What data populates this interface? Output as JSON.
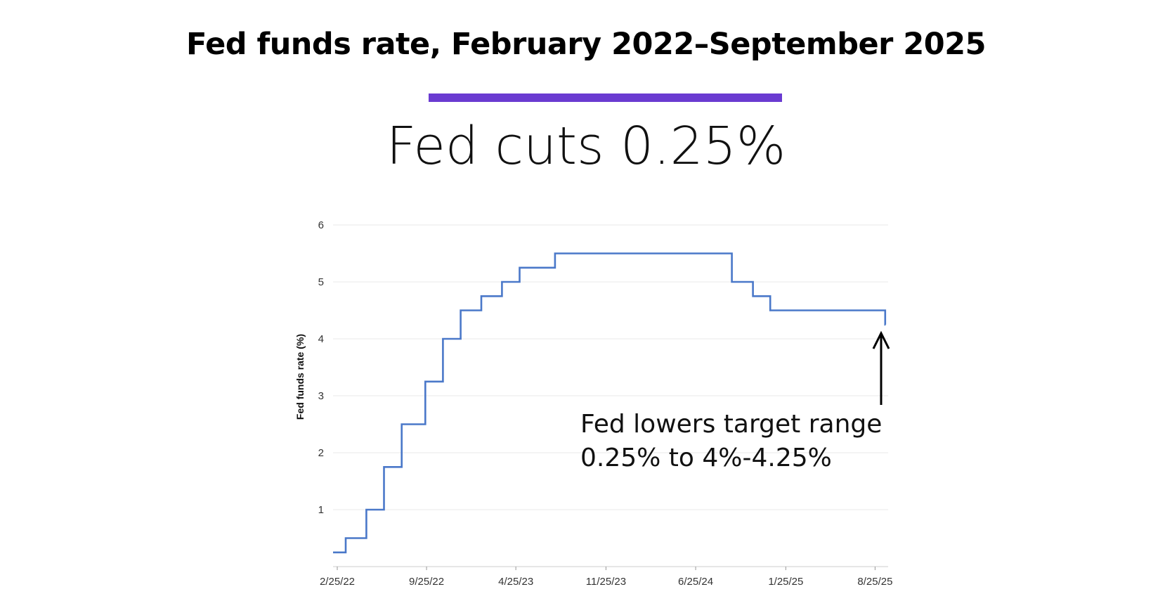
{
  "header": {
    "title": "Fed funds rate, February 2022–September 2025",
    "subtitle": "Fed cuts 0.25%"
  },
  "colors": {
    "accent": "#6a3bd1",
    "line": "#4a78c9",
    "grid": "#e8e8e8",
    "axis": "#cccccc",
    "text": "#111111"
  },
  "annotation": {
    "line1": "Fed lowers target range",
    "line2": "0.25% to 4%-4.25%",
    "arrow_icon": "arrow-up-icon"
  },
  "chart_data": {
    "type": "line",
    "step": true,
    "ylabel": "Fed funds rate (%)",
    "xlabel": "",
    "ylim": [
      0,
      6
    ],
    "yticks": [
      1,
      2,
      3,
      4,
      5,
      6
    ],
    "xlim": [
      "2022-02-15",
      "2025-09-25"
    ],
    "xticks": [
      {
        "date": "2022-02-25",
        "label": "2/25/22"
      },
      {
        "date": "2022-09-25",
        "label": "9/25/22"
      },
      {
        "date": "2023-04-25",
        "label": "4/25/23"
      },
      {
        "date": "2023-11-25",
        "label": "11/25/23"
      },
      {
        "date": "2024-06-25",
        "label": "6/25/24"
      },
      {
        "date": "2025-01-25",
        "label": "1/25/25"
      },
      {
        "date": "2025-08-25",
        "label": "8/25/25"
      }
    ],
    "grid": true,
    "series": [
      {
        "values": [
          {
            "x": "2022-02-15",
            "y": 0.25
          },
          {
            "x": "2022-03-17",
            "y": 0.5
          },
          {
            "x": "2022-05-05",
            "y": 1.0
          },
          {
            "x": "2022-06-16",
            "y": 1.75
          },
          {
            "x": "2022-07-28",
            "y": 2.5
          },
          {
            "x": "2022-09-22",
            "y": 3.25
          },
          {
            "x": "2022-11-03",
            "y": 4.0
          },
          {
            "x": "2022-12-15",
            "y": 4.5
          },
          {
            "x": "2023-02-02",
            "y": 4.75
          },
          {
            "x": "2023-03-23",
            "y": 5.0
          },
          {
            "x": "2023-05-04",
            "y": 5.25
          },
          {
            "x": "2023-07-27",
            "y": 5.5
          },
          {
            "x": "2024-09-19",
            "y": 5.0
          },
          {
            "x": "2024-11-08",
            "y": 4.75
          },
          {
            "x": "2024-12-19",
            "y": 4.5
          },
          {
            "x": "2025-09-18",
            "y": 4.25
          },
          {
            "x": "2025-09-19",
            "y": 4.25
          }
        ]
      }
    ]
  }
}
